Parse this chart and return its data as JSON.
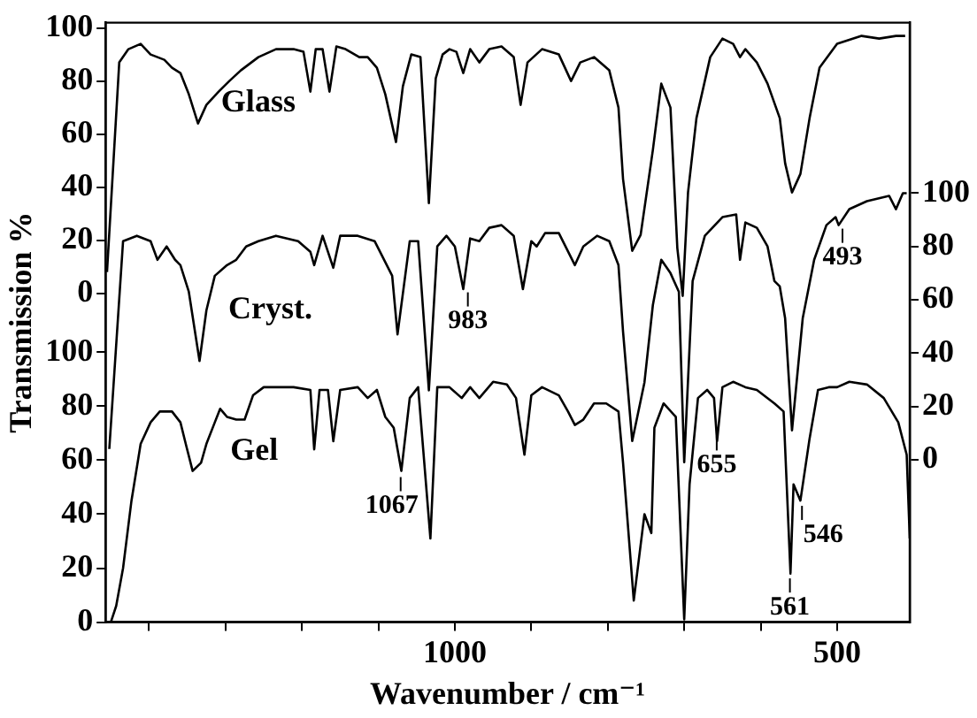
{
  "chart_data": {
    "type": "line",
    "xlabel": "Wavenumber / cm⁻¹",
    "ylabel": "Transmission %",
    "legend": false,
    "grid": false,
    "marker": "none",
    "xlim": [
      1457,
      405
    ],
    "xticks": [
      {
        "value": 1400,
        "label": null
      },
      {
        "value": 1300,
        "label": null
      },
      {
        "value": 1200,
        "label": null
      },
      {
        "value": 1100,
        "label": null
      },
      1000,
      {
        "value": 900,
        "label": null
      },
      {
        "value": 800,
        "label": null
      },
      {
        "value": 700,
        "label": null
      },
      {
        "value": 600,
        "label": null
      },
      500
    ],
    "ylim": [
      -124,
      102
    ],
    "yticks": [
      0,
      20,
      40,
      60,
      80,
      100
    ],
    "y2lim": [
      -61,
      164
    ],
    "y2ticks": [
      0,
      20,
      40,
      60,
      80,
      100
    ],
    "y3lim": [
      0,
      222
    ],
    "y3ticks": [
      0,
      20,
      40,
      60,
      80,
      100
    ],
    "series": [
      {
        "name": "Glass",
        "color": "#000000",
        "axis": "y",
        "x": [
          1455,
          1439,
          1427,
          1411,
          1398,
          1389,
          1380,
          1370,
          1359,
          1348,
          1336,
          1325,
          1309,
          1295,
          1280,
          1257,
          1234,
          1211,
          1198,
          1189,
          1182,
          1173,
          1164,
          1155,
          1143,
          1125,
          1114,
          1102,
          1091,
          1077,
          1068,
          1057,
          1045,
          1034,
          1025,
          1016,
          1007,
          998,
          989,
          980,
          968,
          955,
          939,
          923,
          914,
          905,
          886,
          864,
          848,
          836,
          818,
          798,
          786,
          780,
          768,
          757,
          741,
          730,
          718,
          709,
          702,
          695,
          684,
          666,
          650,
          636,
          627,
          620,
          605,
          591,
          575,
          568,
          559,
          548,
          536,
          523,
          500,
          468,
          445,
          423,
          411
        ],
        "values": [
          8,
          87,
          92,
          94,
          90,
          89,
          88,
          85,
          83,
          75,
          64,
          71,
          76,
          80,
          84,
          89,
          92,
          92,
          91,
          76,
          92,
          92,
          76,
          93,
          92,
          89,
          89,
          85,
          75,
          57,
          78,
          90,
          89,
          34,
          81,
          90,
          92,
          91,
          83,
          92,
          87,
          92,
          93,
          89,
          71,
          87,
          92,
          90,
          80,
          87,
          89,
          84,
          70,
          43,
          16,
          22,
          54,
          79,
          70,
          17,
          -1,
          38,
          66,
          89,
          96,
          94,
          89,
          92,
          87,
          79,
          66,
          49,
          38,
          45,
          66,
          85,
          94,
          97,
          96,
          97,
          97
        ]
      },
      {
        "name": "Cryst.",
        "color": "#000000",
        "axis": "y2",
        "x": [
          1452,
          1434,
          1416,
          1398,
          1389,
          1377,
          1366,
          1359,
          1348,
          1334,
          1325,
          1314,
          1298,
          1286,
          1273,
          1257,
          1234,
          1205,
          1189,
          1184,
          1173,
          1159,
          1150,
          1127,
          1105,
          1082,
          1075,
          1059,
          1048,
          1034,
          1023,
          1011,
          1000,
          989,
          980,
          968,
          955,
          939,
          923,
          911,
          900,
          893,
          882,
          864,
          843,
          832,
          814,
          798,
          786,
          780,
          768,
          752,
          741,
          730,
          718,
          707,
          700,
          689,
          673,
          650,
          632,
          627,
          620,
          605,
          591,
          582,
          575,
          568,
          559,
          545,
          530,
          514,
          502,
          498,
          484,
          461,
          432,
          423,
          414,
          409
        ],
        "values": [
          4,
          82,
          84,
          82,
          75,
          80,
          75,
          73,
          63,
          37,
          56,
          69,
          73,
          75,
          80,
          82,
          84,
          82,
          78,
          73,
          84,
          72,
          84,
          84,
          82,
          69,
          47,
          82,
          82,
          26,
          80,
          84,
          80,
          64,
          83,
          82,
          87,
          88,
          84,
          64,
          82,
          80,
          85,
          85,
          73,
          80,
          84,
          82,
          73,
          48,
          7,
          29,
          58,
          75,
          70,
          63,
          -1,
          67,
          84,
          91,
          92,
          75,
          89,
          87,
          80,
          67,
          65,
          53,
          11,
          53,
          75,
          88,
          91,
          88,
          94,
          97,
          99,
          94,
          100,
          100
        ]
      },
      {
        "name": "Gel",
        "color": "#000000",
        "axis": "y3",
        "x": [
          1450,
          1443,
          1434,
          1423,
          1411,
          1398,
          1386,
          1377,
          1370,
          1359,
          1352,
          1343,
          1332,
          1325,
          1314,
          1307,
          1298,
          1286,
          1275,
          1264,
          1250,
          1234,
          1211,
          1189,
          1184,
          1177,
          1166,
          1159,
          1150,
          1127,
          1114,
          1102,
          1091,
          1080,
          1070,
          1059,
          1048,
          1032,
          1023,
          1007,
          991,
          980,
          968,
          950,
          932,
          920,
          909,
          900,
          886,
          864,
          852,
          843,
          832,
          818,
          802,
          786,
          780,
          766,
          752,
          743,
          739,
          727,
          711,
          700,
          693,
          682,
          670,
          661,
          657,
          650,
          636,
          620,
          605,
          582,
          570,
          561,
          557,
          548,
          536,
          525,
          511,
          500,
          484,
          461,
          439,
          420,
          409,
          405
        ],
        "values": [
          0,
          6,
          20,
          45,
          66,
          74,
          78,
          78,
          78,
          74,
          66,
          56,
          59,
          66,
          74,
          79,
          76,
          75,
          75,
          84,
          87,
          87,
          87,
          86,
          64,
          86,
          86,
          67,
          86,
          87,
          83,
          86,
          76,
          72,
          56,
          83,
          87,
          31,
          87,
          87,
          83,
          87,
          83,
          89,
          88,
          83,
          62,
          84,
          87,
          84,
          78,
          73,
          75,
          81,
          81,
          78,
          59,
          8,
          40,
          33,
          72,
          81,
          76,
          1,
          51,
          83,
          86,
          83,
          67,
          87,
          89,
          87,
          86,
          81,
          78,
          18,
          51,
          45,
          68,
          86,
          87,
          87,
          89,
          88,
          83,
          74,
          62,
          31
        ]
      }
    ],
    "annotations": [
      {
        "text": "983",
        "x": 983,
        "y": 1
      },
      "1067",
      "655",
      "561",
      "546",
      {
        "text": "493",
        "x": 493,
        "y": 25
      }
    ]
  }
}
